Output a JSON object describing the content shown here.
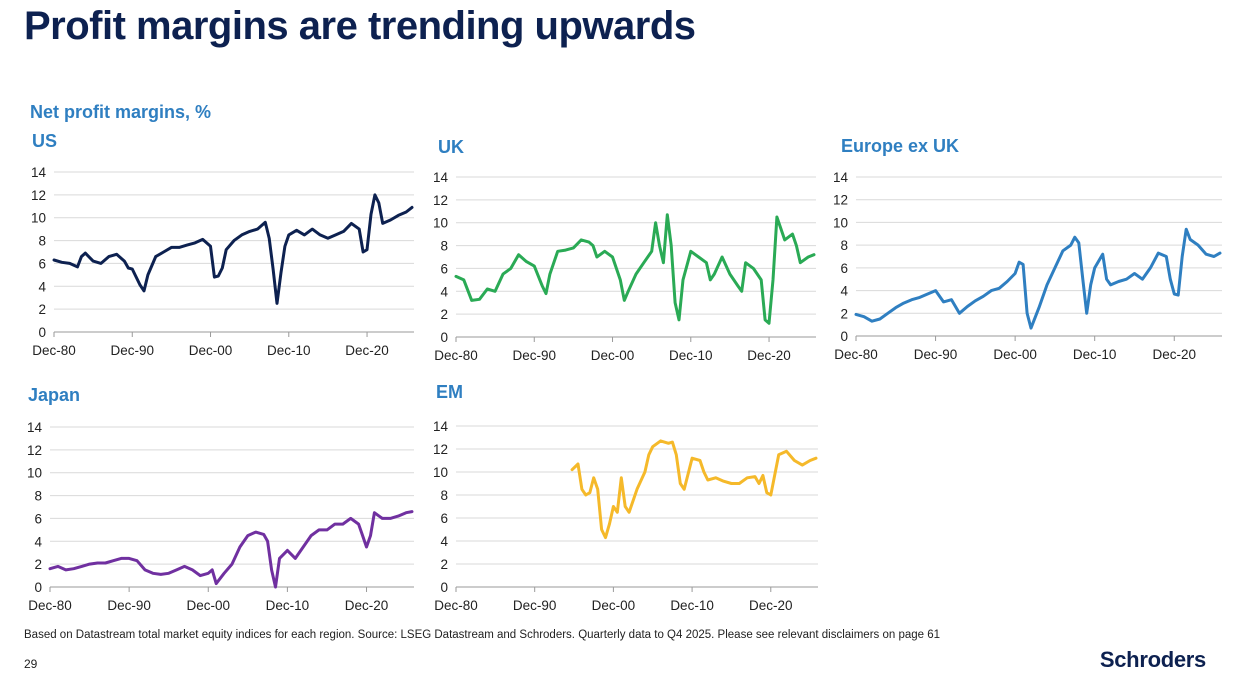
{
  "page": {
    "title": "Profit margins are trending upwards",
    "subtitle": "Net profit margins, %",
    "footnote": "Based on Datastream total market equity indices for each region. Source: LSEG Datastream and Schroders. Quarterly data to Q4 2025. Please see relevant disclaimers on page 61",
    "page_number": "29",
    "logo_text": "Schroders"
  },
  "chart_data": [
    {
      "id": "us",
      "type": "line",
      "title": "US",
      "color": "#0d2150",
      "xlim": [
        1980,
        2026
      ],
      "ylim": [
        0,
        14
      ],
      "yticks": [
        "0",
        "2",
        "4",
        "6",
        "8",
        "10",
        "12",
        "14"
      ],
      "xticks": [
        {
          "x": 1980,
          "label": "Dec-80"
        },
        {
          "x": 1990,
          "label": "Dec-90"
        },
        {
          "x": 2000,
          "label": "Dec-00"
        },
        {
          "x": 2010,
          "label": "Dec-10"
        },
        {
          "x": 2020,
          "label": "Dec-20"
        }
      ],
      "x": [
        1980,
        1981,
        1982,
        1983,
        1983.5,
        1984,
        1985,
        1986,
        1987,
        1988,
        1989,
        1989.5,
        1990,
        1991,
        1991.5,
        1992,
        1993,
        1994,
        1995,
        1996,
        1997,
        1998,
        1999,
        2000,
        2000.5,
        2001,
        2001.5,
        2002,
        2003,
        2004,
        2005,
        2006,
        2007,
        2007.5,
        2008,
        2008.5,
        2009,
        2009.5,
        2010,
        2011,
        2012,
        2013,
        2014,
        2015,
        2016,
        2017,
        2018,
        2019,
        2019.5,
        2020,
        2020.5,
        2021,
        2021.5,
        2022,
        2023,
        2024,
        2025,
        2025.75
      ],
      "y": [
        6.3,
        6.1,
        6.0,
        5.7,
        6.6,
        6.9,
        6.2,
        6.0,
        6.6,
        6.8,
        6.2,
        5.6,
        5.5,
        4.1,
        3.6,
        5.0,
        6.6,
        7.0,
        7.4,
        7.4,
        7.6,
        7.8,
        8.1,
        7.5,
        4.8,
        4.9,
        5.6,
        7.2,
        8.0,
        8.5,
        8.8,
        9.0,
        9.6,
        8.2,
        5.5,
        2.5,
        5.2,
        7.5,
        8.5,
        8.9,
        8.5,
        9.0,
        8.5,
        8.2,
        8.5,
        8.8,
        9.5,
        9.0,
        7.0,
        7.2,
        10.3,
        12.0,
        11.3,
        9.5,
        9.8,
        10.2,
        10.5,
        10.9
      ]
    },
    {
      "id": "uk",
      "type": "line",
      "title": "UK",
      "color": "#2aaa55",
      "xlim": [
        1980,
        2026
      ],
      "ylim": [
        0,
        14
      ],
      "yticks": [
        "0",
        "2",
        "4",
        "6",
        "8",
        "10",
        "12",
        "14"
      ],
      "xticks": [
        {
          "x": 1980,
          "label": "Dec-80"
        },
        {
          "x": 1990,
          "label": "Dec-90"
        },
        {
          "x": 2000,
          "label": "Dec-00"
        },
        {
          "x": 2010,
          "label": "Dec-10"
        },
        {
          "x": 2020,
          "label": "Dec-20"
        }
      ],
      "x": [
        1980,
        1981,
        1982,
        1983,
        1984,
        1985,
        1986,
        1987,
        1988,
        1989,
        1990,
        1991,
        1991.5,
        1992,
        1993,
        1994,
        1995,
        1996,
        1997,
        1997.5,
        1998,
        1999,
        2000,
        2001,
        2001.5,
        2002,
        2003,
        2004,
        2005,
        2005.5,
        2006,
        2006.5,
        2007,
        2007.5,
        2008,
        2008.5,
        2009,
        2010,
        2011,
        2012,
        2012.5,
        2013,
        2014,
        2015,
        2016,
        2016.5,
        2017,
        2018,
        2019,
        2019.5,
        2020,
        2020.5,
        2021,
        2022,
        2023,
        2023.5,
        2024,
        2025,
        2025.75
      ],
      "y": [
        5.3,
        5.0,
        3.2,
        3.3,
        4.2,
        4.0,
        5.5,
        6.0,
        7.2,
        6.6,
        6.2,
        4.5,
        3.8,
        5.5,
        7.5,
        7.6,
        7.8,
        8.5,
        8.3,
        8.0,
        7.0,
        7.5,
        7.0,
        5.0,
        3.2,
        4.0,
        5.5,
        6.5,
        7.5,
        10.0,
        8.0,
        6.5,
        10.7,
        8.0,
        3.0,
        1.5,
        5.0,
        7.5,
        7.0,
        6.5,
        5.0,
        5.5,
        7.0,
        5.5,
        4.5,
        4.0,
        6.5,
        6.0,
        5.0,
        1.5,
        1.2,
        5.0,
        10.5,
        8.5,
        9.0,
        8.0,
        6.5,
        7.0,
        7.2
      ]
    },
    {
      "id": "europe",
      "type": "line",
      "title": "Europe ex UK",
      "color": "#2f7fc1",
      "xlim": [
        1980,
        2026
      ],
      "ylim": [
        0,
        14
      ],
      "yticks": [
        "0",
        "2",
        "4",
        "6",
        "8",
        "10",
        "12",
        "14"
      ],
      "xticks": [
        {
          "x": 1980,
          "label": "Dec-80"
        },
        {
          "x": 1990,
          "label": "Dec-90"
        },
        {
          "x": 2000,
          "label": "Dec-00"
        },
        {
          "x": 2010,
          "label": "Dec-10"
        },
        {
          "x": 2020,
          "label": "Dec-20"
        }
      ],
      "x": [
        1980,
        1981,
        1982,
        1983,
        1984,
        1985,
        1986,
        1987,
        1988,
        1989,
        1990,
        1991,
        1992,
        1993,
        1994,
        1995,
        1996,
        1997,
        1998,
        1999,
        2000,
        2000.5,
        2001,
        2001.5,
        2002,
        2003,
        2004,
        2005,
        2006,
        2007,
        2007.5,
        2008,
        2008.5,
        2009,
        2009.5,
        2010,
        2011,
        2011.5,
        2012,
        2013,
        2014,
        2015,
        2016,
        2017,
        2018,
        2019,
        2019.5,
        2020,
        2020.5,
        2021,
        2021.5,
        2022,
        2023,
        2024,
        2025,
        2025.75
      ],
      "y": [
        1.9,
        1.7,
        1.3,
        1.5,
        2.0,
        2.5,
        2.9,
        3.2,
        3.4,
        3.7,
        4.0,
        3.0,
        3.2,
        2.0,
        2.6,
        3.1,
        3.5,
        4.0,
        4.2,
        4.8,
        5.5,
        6.5,
        6.3,
        2.0,
        0.7,
        2.5,
        4.5,
        6.0,
        7.5,
        8.0,
        8.7,
        8.2,
        5.0,
        2.0,
        4.5,
        6.0,
        7.2,
        5.0,
        4.5,
        4.8,
        5.0,
        5.5,
        5.0,
        6.0,
        7.3,
        7.0,
        5.0,
        3.7,
        3.6,
        7.0,
        9.4,
        8.5,
        8.0,
        7.2,
        7.0,
        7.3
      ]
    },
    {
      "id": "japan",
      "type": "line",
      "title": "Japan",
      "color": "#7030a0",
      "xlim": [
        1980,
        2026
      ],
      "ylim": [
        0,
        14
      ],
      "yticks": [
        "0",
        "2",
        "4",
        "6",
        "8",
        "10",
        "12",
        "14"
      ],
      "xticks": [
        {
          "x": 1980,
          "label": "Dec-80"
        },
        {
          "x": 1990,
          "label": "Dec-90"
        },
        {
          "x": 2000,
          "label": "Dec-00"
        },
        {
          "x": 2010,
          "label": "Dec-10"
        },
        {
          "x": 2020,
          "label": "Dec-20"
        }
      ],
      "x": [
        1980,
        1981,
        1982,
        1983,
        1984,
        1985,
        1986,
        1987,
        1988,
        1989,
        1990,
        1991,
        1992,
        1993,
        1994,
        1995,
        1996,
        1997,
        1998,
        1999,
        2000,
        2000.5,
        2001,
        2002,
        2003,
        2004,
        2005,
        2006,
        2007,
        2007.5,
        2008,
        2008.5,
        2009,
        2010,
        2011,
        2012,
        2013,
        2014,
        2015,
        2016,
        2017,
        2018,
        2019,
        2019.5,
        2020,
        2020.5,
        2021,
        2022,
        2023,
        2024,
        2025,
        2025.75
      ],
      "y": [
        1.6,
        1.8,
        1.5,
        1.6,
        1.8,
        2.0,
        2.1,
        2.1,
        2.3,
        2.5,
        2.5,
        2.3,
        1.5,
        1.2,
        1.1,
        1.2,
        1.5,
        1.8,
        1.5,
        1.0,
        1.2,
        1.5,
        0.3,
        1.2,
        2.0,
        3.5,
        4.5,
        4.8,
        4.6,
        4.0,
        1.5,
        0.0,
        2.5,
        3.2,
        2.5,
        3.5,
        4.5,
        5.0,
        5.0,
        5.5,
        5.5,
        6.0,
        5.5,
        4.5,
        3.5,
        4.5,
        6.5,
        6.0,
        6.0,
        6.2,
        6.5,
        6.6
      ]
    },
    {
      "id": "em",
      "type": "line",
      "title": "EM",
      "color": "#f5b92a",
      "xlim": [
        1980,
        2026
      ],
      "ylim": [
        0,
        14
      ],
      "yticks": [
        "0",
        "2",
        "4",
        "6",
        "8",
        "10",
        "12",
        "14"
      ],
      "xticks": [
        {
          "x": 1980,
          "label": "Dec-80"
        },
        {
          "x": 1990,
          "label": "Dec-90"
        },
        {
          "x": 2000,
          "label": "Dec-00"
        },
        {
          "x": 2010,
          "label": "Dec-10"
        },
        {
          "x": 2020,
          "label": "Dec-20"
        }
      ],
      "x": [
        1994.75,
        1995.5,
        1996,
        1996.5,
        1997,
        1997.5,
        1998,
        1998.5,
        1999,
        1999.5,
        2000,
        2000.5,
        2001,
        2001.5,
        2002,
        2003,
        2004,
        2004.5,
        2005,
        2006,
        2007,
        2007.5,
        2008,
        2008.5,
        2009,
        2010,
        2011,
        2011.5,
        2012,
        2013,
        2014,
        2015,
        2016,
        2017,
        2018,
        2018.5,
        2019,
        2019.5,
        2020,
        2021,
        2022,
        2023,
        2024,
        2025,
        2025.75
      ],
      "y": [
        10.2,
        10.7,
        8.5,
        8.0,
        8.2,
        9.5,
        8.5,
        5.0,
        4.3,
        5.5,
        7.0,
        6.5,
        9.5,
        7.0,
        6.5,
        8.5,
        10.0,
        11.5,
        12.2,
        12.7,
        12.5,
        12.6,
        11.5,
        9.0,
        8.5,
        11.2,
        11.0,
        10.0,
        9.3,
        9.5,
        9.2,
        9.0,
        9.0,
        9.5,
        9.6,
        9.0,
        9.7,
        8.2,
        8.0,
        11.5,
        11.8,
        11.0,
        10.6,
        11.0,
        11.2
      ]
    }
  ]
}
